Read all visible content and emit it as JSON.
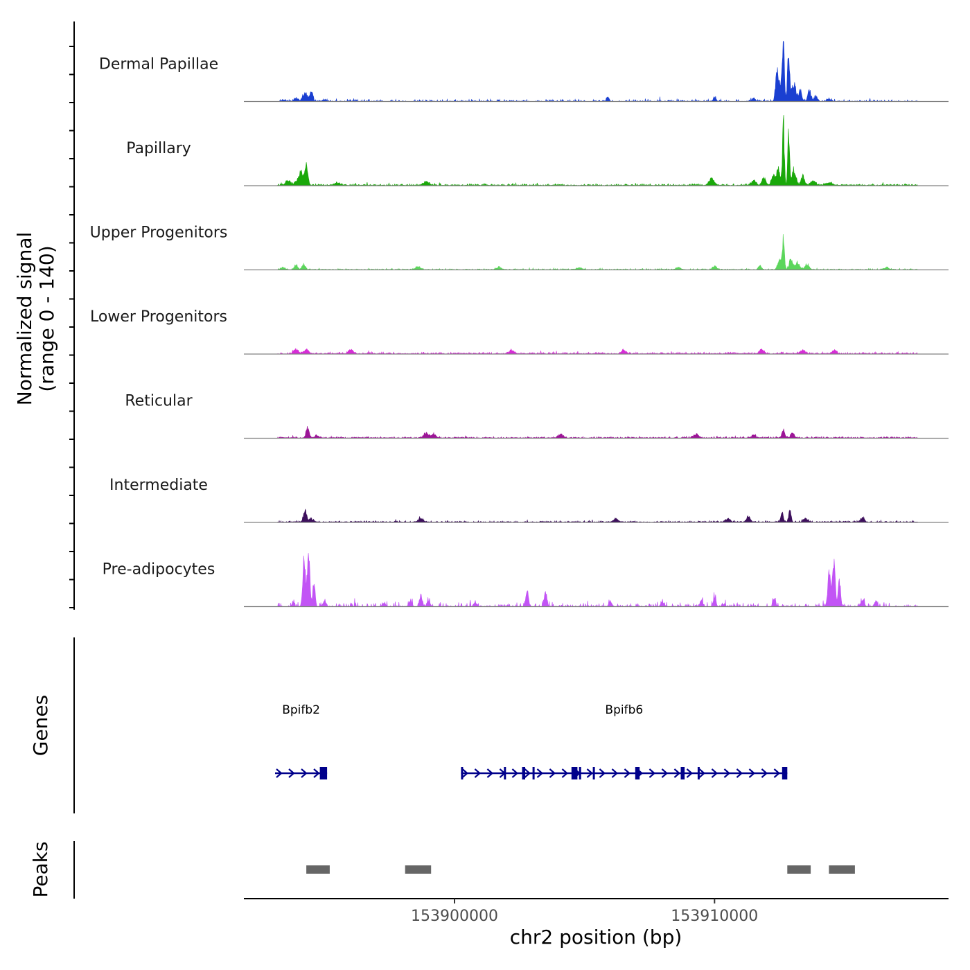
{
  "chart_data": {
    "type": "area",
    "chromosome": "chr2",
    "x_range": [
      153891900,
      153919000
    ],
    "y_range": [
      0,
      140
    ],
    "ylabel": "Normalized signal\n(range 0 - 140)",
    "xlabel": "chr2 position (bp)",
    "x_ticks": [
      153900000,
      153910000
    ],
    "x_tick_labels": [
      "153900000",
      "153910000"
    ],
    "data_start": 153893200,
    "data_end": 153917800,
    "tracks": [
      {
        "name": "Dermal Papillae",
        "color": "#1a3fd1",
        "baseline_density": 0.45,
        "noise": 5,
        "peaks": [
          [
            153893450,
            3,
            60
          ],
          [
            153893900,
            7,
            80
          ],
          [
            153894200,
            12,
            70
          ],
          [
            153894500,
            22,
            60
          ],
          [
            153894300,
            14,
            60
          ],
          [
            153895000,
            4,
            80
          ],
          [
            153905900,
            10,
            50
          ],
          [
            153912400,
            60,
            55
          ],
          [
            153912650,
            105,
            40
          ],
          [
            153912850,
            125,
            40
          ],
          [
            153912550,
            40,
            90
          ],
          [
            153913050,
            40,
            90
          ],
          [
            153913300,
            22,
            60
          ],
          [
            153913650,
            25,
            60
          ],
          [
            153913900,
            12,
            60
          ],
          [
            153914400,
            6,
            80
          ],
          [
            153910000,
            9,
            60
          ],
          [
            153911500,
            8,
            70
          ]
        ]
      },
      {
        "name": "Papillary",
        "color": "#1aa80a",
        "baseline_density": 1.0,
        "noise": 4,
        "peaks": [
          [
            153893600,
            12,
            90
          ],
          [
            153894100,
            30,
            70
          ],
          [
            153894300,
            45,
            60
          ],
          [
            153893950,
            10,
            80
          ],
          [
            153895500,
            6,
            120
          ],
          [
            153898900,
            8,
            120
          ],
          [
            153909900,
            15,
            90
          ],
          [
            153911500,
            12,
            80
          ],
          [
            153911900,
            18,
            70
          ],
          [
            153912250,
            25,
            60
          ],
          [
            153912650,
            142,
            35
          ],
          [
            153912850,
            117,
            35
          ],
          [
            153912450,
            35,
            80
          ],
          [
            153913050,
            35,
            80
          ],
          [
            153913400,
            20,
            70
          ],
          [
            153913800,
            10,
            90
          ],
          [
            153914400,
            6,
            120
          ]
        ]
      },
      {
        "name": "Upper Progenitors",
        "color": "#5cd65c",
        "baseline_density": 0.75,
        "noise": 3,
        "peaks": [
          [
            153893400,
            5,
            80
          ],
          [
            153893900,
            10,
            70
          ],
          [
            153894200,
            12,
            60
          ],
          [
            153898600,
            6,
            100
          ],
          [
            153901700,
            5,
            100
          ],
          [
            153904800,
            5,
            100
          ],
          [
            153908600,
            5,
            100
          ],
          [
            153910000,
            8,
            80
          ],
          [
            153911750,
            10,
            60
          ],
          [
            153912650,
            70,
            40
          ],
          [
            153912500,
            20,
            80
          ],
          [
            153912950,
            25,
            70
          ],
          [
            153913200,
            18,
            70
          ],
          [
            153913550,
            12,
            80
          ],
          [
            153916600,
            5,
            100
          ]
        ]
      },
      {
        "name": "Lower Progenitors",
        "color": "#d62dd6",
        "baseline_density": 1.0,
        "noise": 4,
        "peaks": [
          [
            153893900,
            10,
            90
          ],
          [
            153894300,
            10,
            80
          ],
          [
            153896000,
            9,
            90
          ],
          [
            153902200,
            8,
            90
          ],
          [
            153906500,
            8,
            90
          ],
          [
            153911800,
            8,
            90
          ],
          [
            153913400,
            8,
            90
          ],
          [
            153914600,
            8,
            90
          ]
        ]
      },
      {
        "name": "Reticular",
        "color": "#9c1597",
        "baseline_density": 0.95,
        "noise": 3.5,
        "peaks": [
          [
            153894350,
            22,
            60
          ],
          [
            153894700,
            6,
            80
          ],
          [
            153898900,
            12,
            90
          ],
          [
            153899200,
            8,
            90
          ],
          [
            153904100,
            8,
            90
          ],
          [
            153909300,
            8,
            90
          ],
          [
            153912650,
            18,
            60
          ],
          [
            153913000,
            12,
            60
          ],
          [
            153911500,
            7,
            80
          ]
        ]
      },
      {
        "name": "Intermediate",
        "color": "#3d0f5c",
        "baseline_density": 0.95,
        "noise": 3.5,
        "peaks": [
          [
            153894250,
            30,
            60
          ],
          [
            153894500,
            8,
            80
          ],
          [
            153898700,
            8,
            90
          ],
          [
            153906200,
            8,
            90
          ],
          [
            153910500,
            8,
            90
          ],
          [
            153911300,
            12,
            70
          ],
          [
            153912600,
            20,
            50
          ],
          [
            153912900,
            28,
            45
          ],
          [
            153913500,
            10,
            70
          ],
          [
            153915700,
            10,
            70
          ]
        ]
      },
      {
        "name": "Pre-adipocytes",
        "color": "#c254f5",
        "baseline_density": 0.3,
        "noise": 10,
        "peaks": [
          [
            153893800,
            10,
            50
          ],
          [
            153894200,
            75,
            40
          ],
          [
            153894400,
            95,
            40
          ],
          [
            153894600,
            70,
            40
          ],
          [
            153894300,
            55,
            90
          ],
          [
            153895000,
            12,
            60
          ],
          [
            153897300,
            8,
            60
          ],
          [
            153898300,
            12,
            60
          ],
          [
            153898700,
            25,
            50
          ],
          [
            153899000,
            15,
            60
          ],
          [
            153900800,
            10,
            60
          ],
          [
            153902800,
            35,
            50
          ],
          [
            153903500,
            30,
            50
          ],
          [
            153906000,
            10,
            60
          ],
          [
            153908000,
            10,
            60
          ],
          [
            153909500,
            18,
            50
          ],
          [
            153910000,
            25,
            50
          ],
          [
            153912300,
            22,
            50
          ],
          [
            153914400,
            55,
            45
          ],
          [
            153914600,
            75,
            45
          ],
          [
            153914800,
            65,
            45
          ],
          [
            153914500,
            40,
            100
          ],
          [
            153915700,
            15,
            60
          ],
          [
            153916200,
            10,
            60
          ]
        ]
      }
    ],
    "genes": [
      {
        "name": "Bpifb2",
        "start": 153893100,
        "end": 153895100,
        "strand": "+",
        "exons": [
          [
            153894820,
            153895100
          ]
        ]
      },
      {
        "name": "Bpifb6",
        "start": 153900250,
        "end": 153912800,
        "strand": "+",
        "exons": [
          [
            153900250,
            153900320
          ],
          [
            153901900,
            153901960
          ],
          [
            153902600,
            153902720
          ],
          [
            153903000,
            153903060
          ],
          [
            153904500,
            153904730
          ],
          [
            153904790,
            153904840
          ],
          [
            153905320,
            153905370
          ],
          [
            153906950,
            153907120
          ],
          [
            153908700,
            153908850
          ],
          [
            153909350,
            153909400
          ],
          [
            153912600,
            153912800
          ]
        ]
      }
    ],
    "peaks": [
      [
        153894300,
        153895200
      ],
      [
        153898100,
        153899100
      ],
      [
        153912800,
        153913700
      ],
      [
        153914400,
        153915400
      ]
    ]
  }
}
